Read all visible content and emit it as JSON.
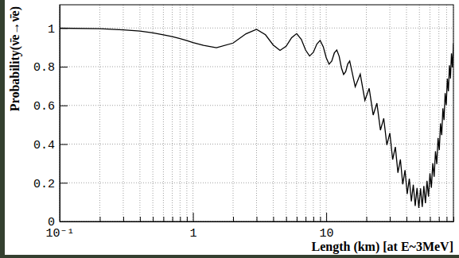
{
  "chart_data": {
    "type": "line",
    "x_label": "Length (km) [at E~3MeV]",
    "y_label": "Probability(ν̄e→ν̄e)",
    "log": "x",
    "grid": true,
    "color": "#000000",
    "xlim": [
      0.1,
      90
    ],
    "ylim": [
      0,
      1.12
    ],
    "xticks": [
      {
        "value": 0.1,
        "label": "10⁻¹"
      },
      {
        "value": 0.2,
        "label": null
      },
      {
        "value": 0.3,
        "label": null
      },
      {
        "value": 0.4,
        "label": null
      },
      {
        "value": 0.5,
        "label": null
      },
      {
        "value": 0.6,
        "label": null
      },
      {
        "value": 0.7,
        "label": null
      },
      {
        "value": 0.8,
        "label": null
      },
      {
        "value": 0.9,
        "label": null
      },
      1,
      {
        "value": 2,
        "label": null
      },
      {
        "value": 3,
        "label": null
      },
      {
        "value": 4,
        "label": null
      },
      {
        "value": 5,
        "label": null
      },
      {
        "value": 6,
        "label": null
      },
      {
        "value": 7,
        "label": null
      },
      {
        "value": 8,
        "label": null
      },
      {
        "value": 9,
        "label": null
      },
      10,
      {
        "value": 20,
        "label": null
      },
      {
        "value": 30,
        "label": null
      },
      {
        "value": 40,
        "label": null
      },
      {
        "value": 50,
        "label": null
      },
      {
        "value": 60,
        "label": null
      },
      {
        "value": 70,
        "label": null
      },
      {
        "value": 80,
        "label": null
      },
      {
        "value": 90,
        "label": null
      }
    ],
    "yticks": [
      0,
      0.2,
      0.4,
      0.6,
      0.8,
      1
    ],
    "x": [
      0.1,
      0.2,
      0.3,
      0.4,
      0.5,
      0.6,
      0.7,
      0.8,
      0.9,
      1.0,
      1.2,
      1.5,
      2,
      2.5,
      3,
      3.5,
      4,
      4.5,
      5,
      5.5,
      6,
      6.5,
      7,
      7.5,
      8,
      8.5,
      9,
      9.5,
      10,
      10.5,
      11,
      11.5,
      12,
      12.5,
      13,
      13.5,
      14,
      14.5,
      15,
      16.5,
      18,
      19.5,
      21,
      22.5,
      24,
      25.5,
      27,
      28.5,
      30,
      31.5,
      33,
      34.5,
      36,
      37.5,
      39,
      40.5,
      42,
      43.5,
      45,
      46.5,
      48,
      49.5,
      51,
      52.5,
      54,
      55.5,
      57,
      58.5,
      60,
      61.5,
      63,
      64.5,
      66,
      67.5,
      69,
      70.5,
      72,
      73.5,
      75,
      76.5,
      78,
      79.5,
      81,
      82.5,
      84,
      85.5,
      87,
      88.5,
      90
    ],
    "values": [
      0.999,
      0.996,
      0.99,
      0.984,
      0.975,
      0.965,
      0.955,
      0.945,
      0.935,
      0.925,
      0.91,
      0.898,
      0.922,
      0.97,
      0.993,
      0.965,
      0.912,
      0.884,
      0.905,
      0.95,
      0.971,
      0.941,
      0.886,
      0.855,
      0.874,
      0.917,
      0.936,
      0.903,
      0.846,
      0.813,
      0.829,
      0.871,
      0.886,
      0.854,
      0.794,
      0.76,
      0.775,
      0.814,
      0.829,
      0.696,
      0.762,
      0.626,
      0.688,
      0.55,
      0.611,
      0.472,
      0.533,
      0.395,
      0.457,
      0.32,
      0.385,
      0.252,
      0.321,
      0.192,
      0.265,
      0.142,
      0.221,
      0.104,
      0.19,
      0.08,
      0.173,
      0.07,
      0.171,
      0.075,
      0.183,
      0.095,
      0.21,
      0.128,
      0.249,
      0.174,
      0.301,
      0.231,
      0.363,
      0.297,
      0.432,
      0.369,
      0.507,
      0.446,
      0.585,
      0.524,
      0.663,
      0.601,
      0.738,
      0.673,
      0.807,
      0.739,
      0.869,
      0.796,
      0.921
    ]
  }
}
